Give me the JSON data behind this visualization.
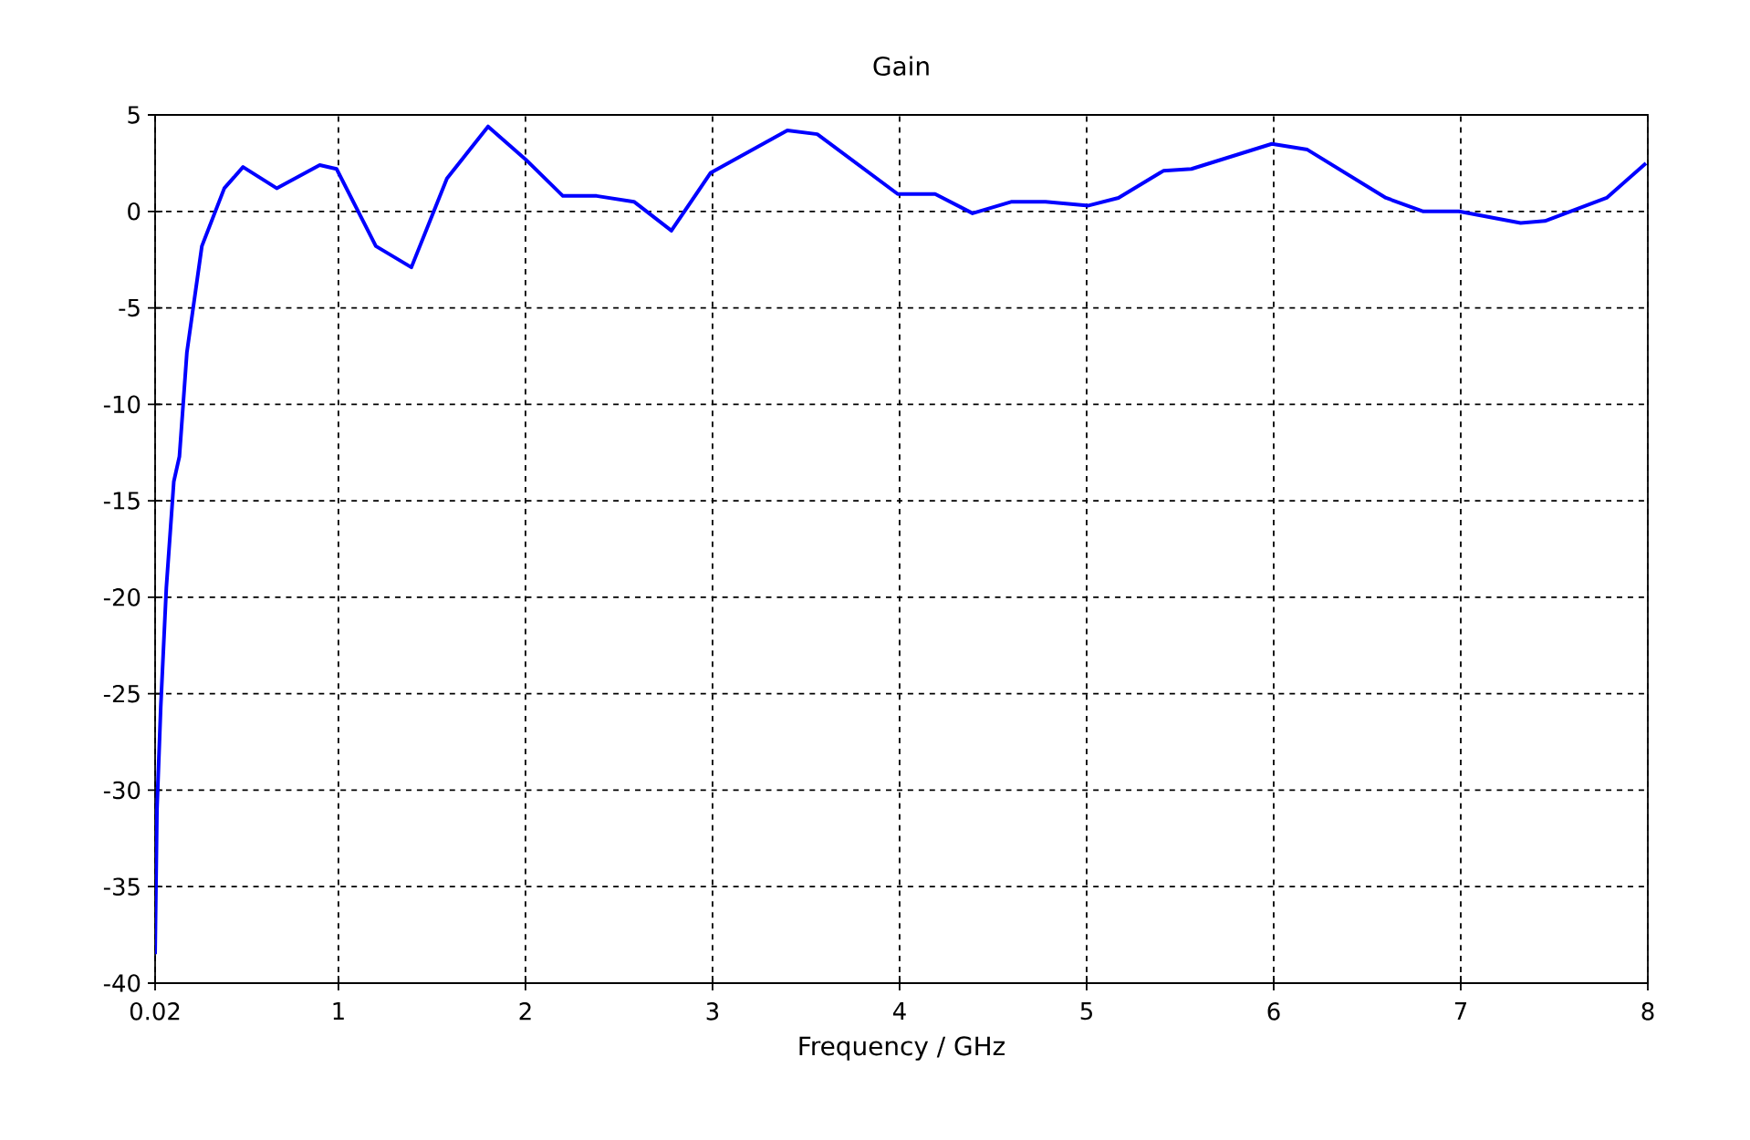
{
  "chart_data": {
    "type": "line",
    "title": "Gain",
    "xlabel": "Frequency / GHz",
    "series": [
      {
        "color": "#0000ff",
        "x": [
          0.02,
          0.03,
          0.05,
          0.08,
          0.12,
          0.15,
          0.19,
          0.27,
          0.39,
          0.49,
          0.67,
          0.9,
          0.99,
          1.2,
          1.39,
          1.58,
          1.8,
          2.0,
          2.2,
          2.38,
          2.58,
          2.78,
          2.99,
          3.4,
          3.56,
          3.99,
          4.19,
          4.39,
          4.6,
          4.78,
          5.01,
          5.17,
          5.41,
          5.56,
          5.99,
          6.18,
          6.6,
          6.8,
          6.99,
          7.32,
          7.45,
          7.78,
          7.99
        ],
        "values": [
          -38.5,
          -31,
          -25.7,
          -19.5,
          -14,
          -12.7,
          -7.3,
          -1.8,
          1.2,
          2.3,
          1.2,
          2.4,
          2.2,
          -1.8,
          -2.9,
          1.7,
          4.4,
          2.7,
          0.8,
          0.8,
          0.5,
          -1.0,
          2.0,
          4.2,
          4.0,
          0.9,
          0.9,
          -0.1,
          0.5,
          0.5,
          0.3,
          0.7,
          2.1,
          2.2,
          3.5,
          3.2,
          0.7,
          0.0,
          0.0,
          -0.6,
          -0.5,
          0.7,
          2.5
        ]
      }
    ],
    "xlim": [
      0.02,
      8
    ],
    "ylim": [
      -40,
      5
    ],
    "xticks": [
      0.02,
      1,
      2,
      3,
      4,
      5,
      6,
      7,
      8
    ],
    "yticks": [
      -40,
      -35,
      -30,
      -25,
      -20,
      -15,
      -10,
      -5,
      0,
      5
    ],
    "grid": true,
    "line_style": "solid",
    "marker": "none"
  }
}
